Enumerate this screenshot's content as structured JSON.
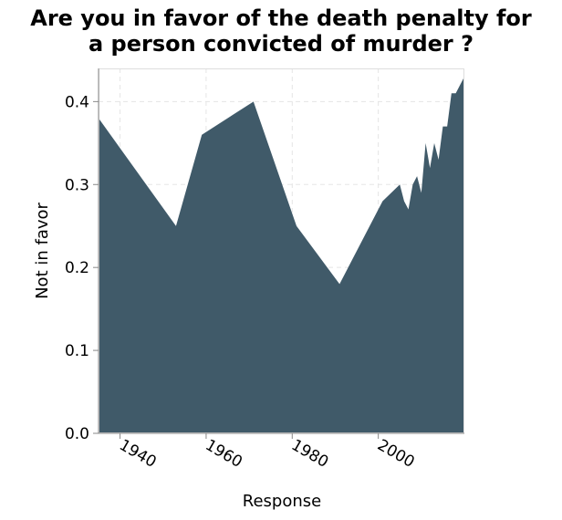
{
  "chart_data": {
    "type": "area",
    "title_lines": [
      "Are you in favor of the death penalty for",
      "a person convicted of murder ?"
    ],
    "xlabel": "Response",
    "ylabel": "Not in favor",
    "xlim": [
      1935,
      2020
    ],
    "ylim": [
      0,
      0.44
    ],
    "x_ticks": [
      1940,
      1960,
      1980,
      2000
    ],
    "x_tick_labels": [
      "1940",
      "1960",
      "1980",
      "2000"
    ],
    "y_ticks": [
      0,
      0.1,
      0.2,
      0.3,
      0.4
    ],
    "y_tick_labels": [
      "0.0",
      "0.1",
      "0.2",
      "0.3",
      "0.4"
    ],
    "grid": true,
    "colors": {
      "fill": "#405a69",
      "grid": "#e5e5e5",
      "axis": "#888888"
    },
    "series": [
      {
        "x": [
          1935,
          1953,
          1959,
          1971,
          1981,
          1991,
          2001,
          2005,
          2006,
          2007,
          2008,
          2009,
          2010,
          2011,
          2012,
          2013,
          2014,
          2015,
          2016,
          2017,
          2018,
          2019,
          2020
        ],
        "y": [
          0.38,
          0.25,
          0.36,
          0.4,
          0.25,
          0.18,
          0.28,
          0.3,
          0.28,
          0.27,
          0.3,
          0.31,
          0.29,
          0.35,
          0.32,
          0.35,
          0.33,
          0.37,
          0.37,
          0.41,
          0.41,
          0.42,
          0.43
        ]
      }
    ]
  }
}
